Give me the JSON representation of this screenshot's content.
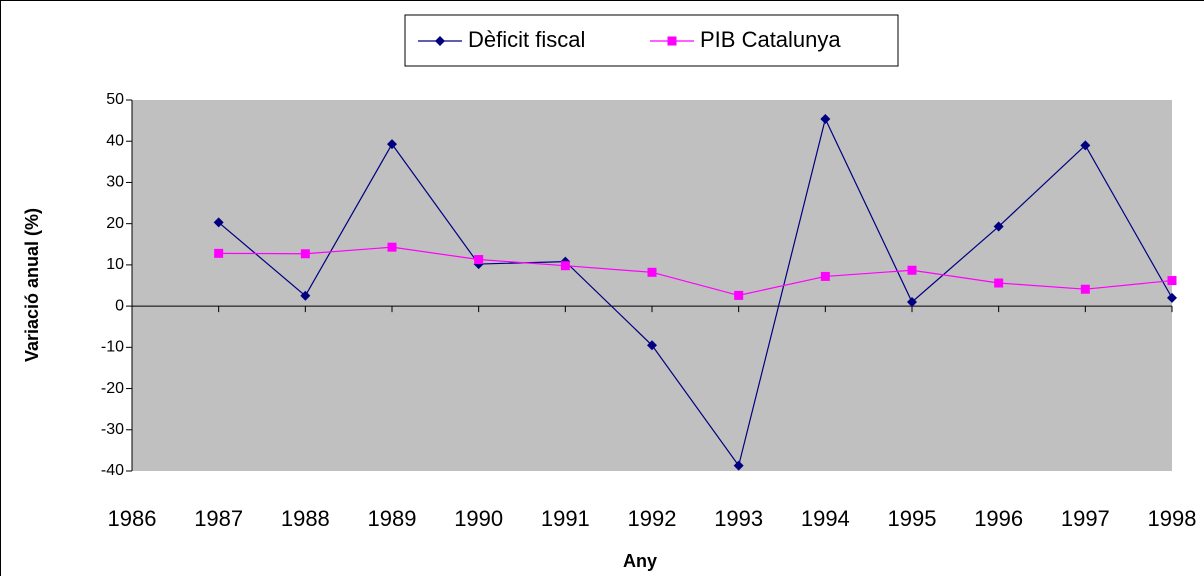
{
  "chart_data": {
    "type": "line",
    "x_label": "Any",
    "y_label": "Variació anual (%)",
    "x": [
      1987,
      1988,
      1989,
      1990,
      1991,
      1992,
      1993,
      1994,
      1995,
      1996,
      1997,
      1998
    ],
    "series": [
      {
        "name": "Dèficit fiscal",
        "color": "#000080",
        "marker": "diamond",
        "values": [
          20.3,
          2.5,
          39.3,
          10.2,
          10.8,
          -9.5,
          -38.7,
          45.4,
          1.0,
          19.3,
          39.0,
          2.0
        ]
      },
      {
        "name": "PIB Catalunya",
        "color": "#ff00ff",
        "marker": "square",
        "values": [
          12.8,
          12.7,
          14.3,
          11.3,
          9.8,
          8.2,
          2.6,
          7.2,
          8.7,
          5.6,
          4.1,
          6.2
        ]
      }
    ],
    "xlim": [
      1986,
      1998
    ],
    "xticks": [
      1986,
      1987,
      1988,
      1989,
      1990,
      1991,
      1992,
      1993,
      1994,
      1995,
      1996,
      1997,
      1998
    ],
    "ylim": [
      -40,
      50
    ],
    "yticks": [
      -40,
      -30,
      -20,
      -10,
      0,
      10,
      20,
      30,
      40,
      50
    ],
    "legend": "top",
    "plot_background": "#c0c0c0"
  }
}
